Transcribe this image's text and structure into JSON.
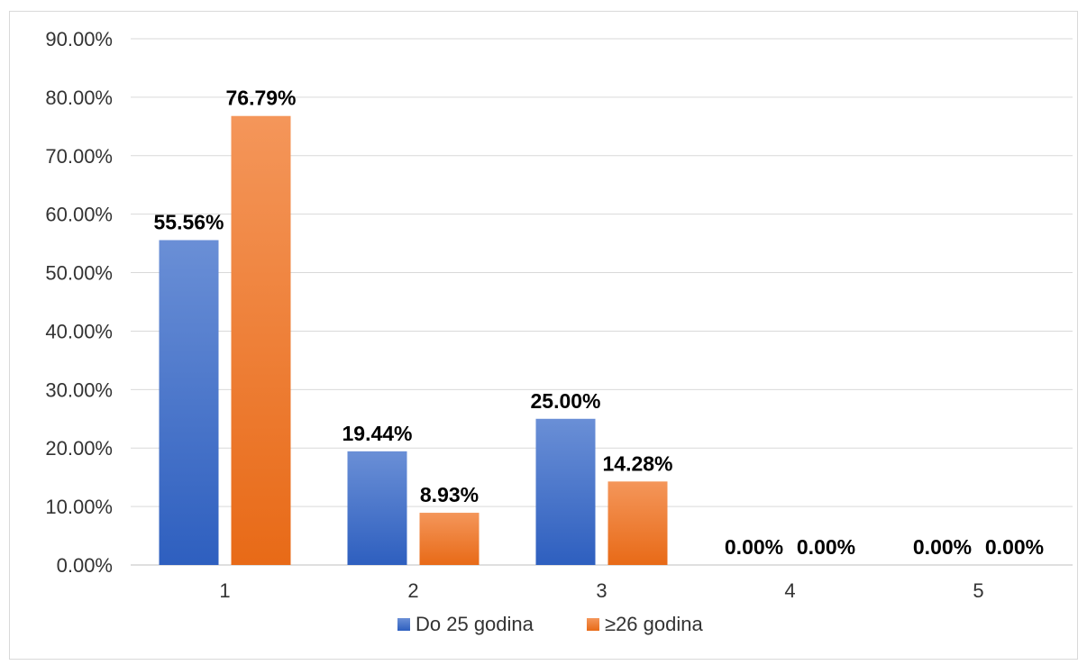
{
  "chart_data": {
    "type": "bar",
    "title": "",
    "xlabel": "",
    "ylabel": "",
    "categories": [
      "1",
      "2",
      "3",
      "4",
      "5"
    ],
    "series": [
      {
        "name": "Do 25 godina",
        "values": [
          55.56,
          19.44,
          25.0,
          0.0,
          0.0
        ],
        "labels": [
          "55.56%",
          "19.44%",
          "25.00%",
          "0.00%",
          "0.00%"
        ],
        "color_top": "#6a8fd6",
        "color_bottom": "#2e5fbf"
      },
      {
        "name": "≥26 godina",
        "values": [
          76.79,
          8.93,
          14.28,
          0.0,
          0.0
        ],
        "labels": [
          "76.79%",
          "8.93%",
          "14.28%",
          "0.00%",
          "0.00%"
        ],
        "color_top": "#f4965a",
        "color_bottom": "#e86a17"
      }
    ],
    "ylim": [
      0,
      90
    ],
    "yticks": [
      0,
      10,
      20,
      30,
      40,
      50,
      60,
      70,
      80,
      90
    ],
    "ytick_labels": [
      "0.00%",
      "10.00%",
      "20.00%",
      "30.00%",
      "40.00%",
      "50.00%",
      "60.00%",
      "70.00%",
      "80.00%",
      "90.00%"
    ],
    "grid": true,
    "legend_position": "bottom"
  }
}
